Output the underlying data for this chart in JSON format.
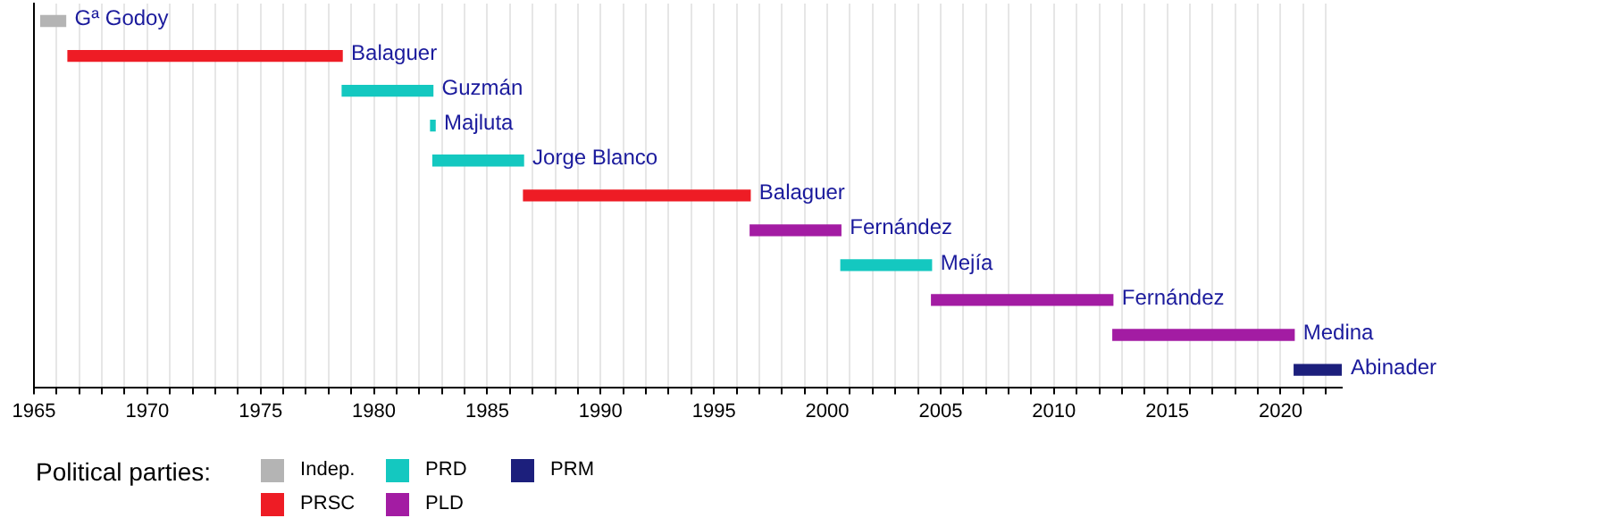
{
  "chart_data": {
    "type": "bar",
    "orientation": "horizontal",
    "legend_title": "Political parties:",
    "legend": "bottom left",
    "grid": "x",
    "tick_labels": "x",
    "categories": [
      "Gª Godoy",
      "Balaguer",
      "Guzmán",
      "Majluta",
      "Jorge Blanco",
      "Balaguer",
      "Fernández",
      "Mejía",
      "Fernández",
      "Medina",
      "Abinader"
    ],
    "series": [
      {
        "name": "Indep.",
        "color": "#b4b4b4",
        "base": [
          1965.3,
          null,
          null,
          null,
          null,
          null,
          null,
          null,
          null,
          null,
          null
        ],
        "values": [
          1.1,
          null,
          null,
          null,
          null,
          null,
          null,
          null,
          null,
          null,
          null
        ]
      },
      {
        "name": "PRSC",
        "color": "#ee1c25",
        "base": [
          null,
          1966.5,
          null,
          null,
          null,
          1986.6,
          null,
          null,
          null,
          null,
          null
        ],
        "values": [
          null,
          12.1,
          null,
          null,
          null,
          10,
          null,
          null,
          null,
          null,
          null
        ]
      },
      {
        "name": "PRD",
        "color": "#14c8c0",
        "base": [
          null,
          null,
          1978.6,
          1982.5,
          1982.6,
          null,
          null,
          2000.6,
          null,
          null,
          null
        ],
        "values": [
          null,
          null,
          4,
          0.2,
          4,
          null,
          null,
          4,
          null,
          null,
          null
        ]
      },
      {
        "name": "PLD",
        "color": "#a31ca3",
        "base": [
          null,
          null,
          null,
          null,
          null,
          null,
          1996.6,
          null,
          2004.6,
          2012.6,
          null
        ],
        "values": [
          null,
          null,
          null,
          null,
          null,
          null,
          4,
          null,
          8,
          8,
          null
        ]
      },
      {
        "name": "PRM",
        "color": "#1c1f7c",
        "base": [
          null,
          null,
          null,
          null,
          null,
          null,
          null,
          null,
          null,
          null,
          2020.6
        ],
        "values": [
          null,
          null,
          null,
          null,
          null,
          null,
          null,
          null,
          null,
          null,
          2.1
        ]
      }
    ],
    "xlim": [
      1965,
      2022.7
    ],
    "xticks": [
      1965,
      {
        "value": 1966,
        "label": null
      },
      {
        "value": 1967,
        "label": null
      },
      {
        "value": 1968,
        "label": null
      },
      {
        "value": 1969,
        "label": null
      },
      1970,
      {
        "value": 1971,
        "label": null
      },
      {
        "value": 1972,
        "label": null
      },
      {
        "value": 1973,
        "label": null
      },
      {
        "value": 1974,
        "label": null
      },
      1975,
      {
        "value": 1976,
        "label": null
      },
      {
        "value": 1977,
        "label": null
      },
      {
        "value": 1978,
        "label": null
      },
      {
        "value": 1979,
        "label": null
      },
      1980,
      {
        "value": 1981,
        "label": null
      },
      {
        "value": 1982,
        "label": null
      },
      {
        "value": 1983,
        "label": null
      },
      {
        "value": 1984,
        "label": null
      },
      1985,
      {
        "value": 1986,
        "label": null
      },
      {
        "value": 1987,
        "label": null
      },
      {
        "value": 1988,
        "label": null
      },
      {
        "value": 1989,
        "label": null
      },
      1990,
      {
        "value": 1991,
        "label": null
      },
      {
        "value": 1992,
        "label": null
      },
      {
        "value": 1993,
        "label": null
      },
      {
        "value": 1994,
        "label": null
      },
      1995,
      {
        "value": 1996,
        "label": null
      },
      {
        "value": 1997,
        "label": null
      },
      {
        "value": 1998,
        "label": null
      },
      {
        "value": 1999,
        "label": null
      },
      2000,
      {
        "value": 2001,
        "label": null
      },
      {
        "value": 2002,
        "label": null
      },
      {
        "value": 2003,
        "label": null
      },
      {
        "value": 2004,
        "label": null
      },
      2005,
      {
        "value": 2006,
        "label": null
      },
      {
        "value": 2007,
        "label": null
      },
      {
        "value": 2008,
        "label": null
      },
      {
        "value": 2009,
        "label": null
      },
      2010,
      {
        "value": 2011,
        "label": null
      },
      {
        "value": 2012,
        "label": null
      },
      {
        "value": 2013,
        "label": null
      },
      {
        "value": 2014,
        "label": null
      },
      2015,
      {
        "value": 2016,
        "label": null
      },
      {
        "value": 2017,
        "label": null
      },
      {
        "value": 2018,
        "label": null
      },
      {
        "value": 2019,
        "label": null
      },
      2020,
      {
        "value": 2021,
        "label": null
      },
      {
        "value": 2022,
        "label": null
      }
    ]
  }
}
